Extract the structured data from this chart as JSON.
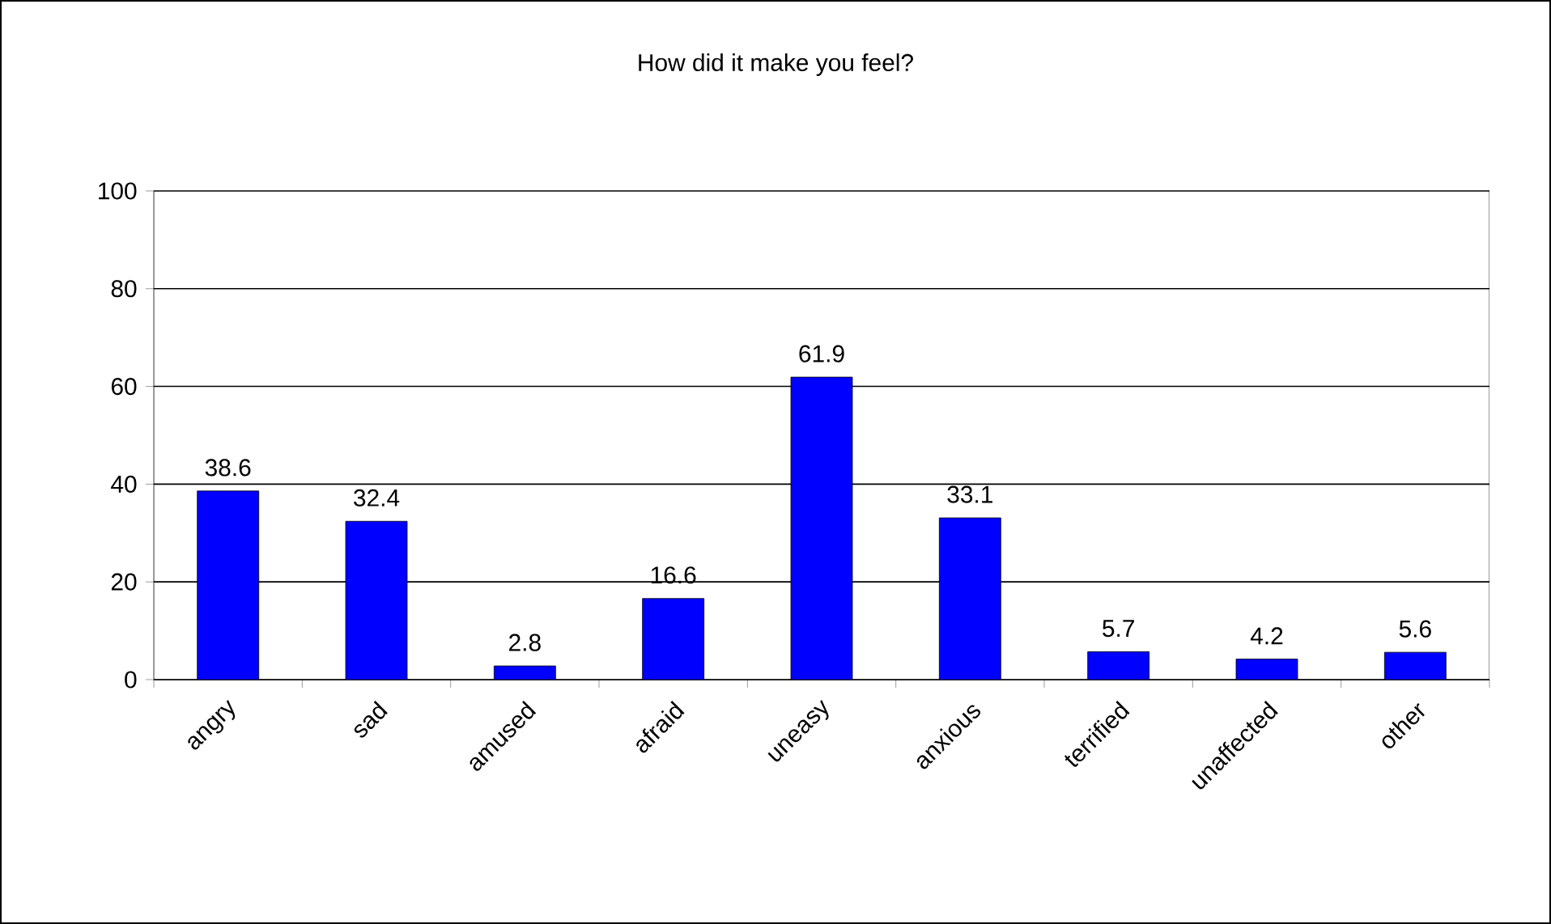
{
  "chart_data": {
    "type": "bar",
    "title": "How did it make you feel?",
    "categories": [
      "angry",
      "sad",
      "amused",
      "afraid",
      "uneasy",
      "anxious",
      "terrified",
      "unaffected",
      "other"
    ],
    "values": [
      38.6,
      32.4,
      2.8,
      16.6,
      61.9,
      33.1,
      5.7,
      4.2,
      5.6
    ],
    "color": "#0000ff",
    "ylim": [
      0,
      100
    ],
    "yticks": [
      0,
      20,
      40,
      60,
      80,
      100
    ],
    "grid": "y",
    "data_labels": true
  }
}
